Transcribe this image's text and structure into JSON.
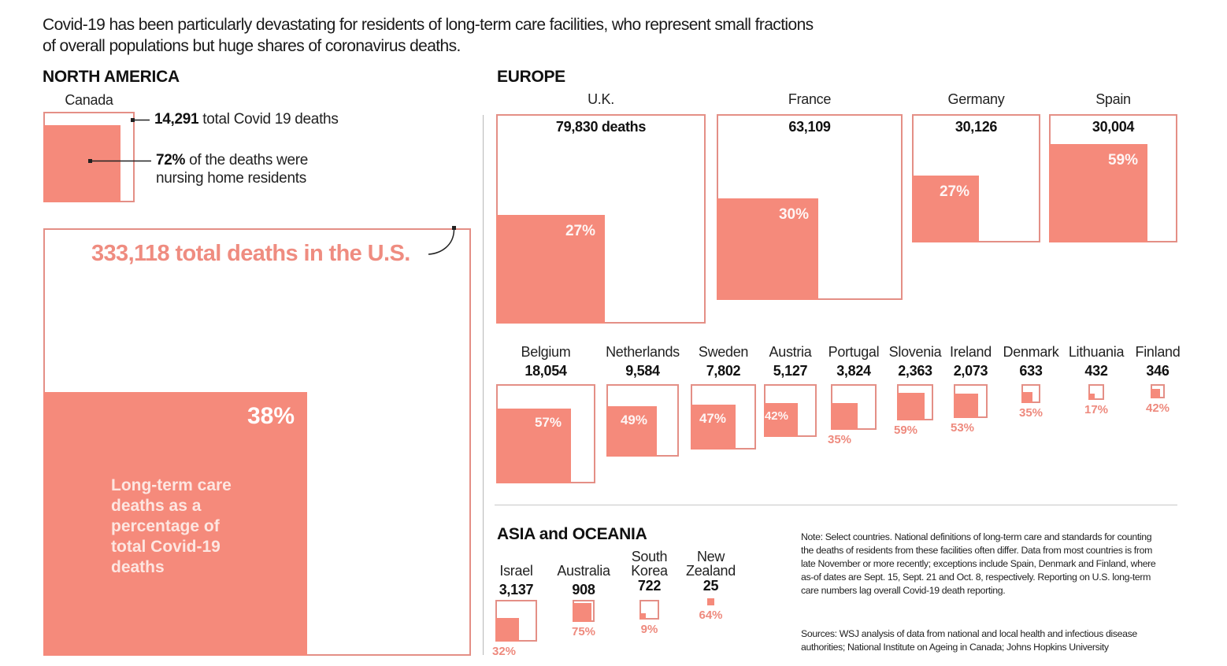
{
  "intro": "Covid-19 has been particularly devastating for residents of long-term care facilities, who represent small fractions of overall populations but huge shares of coronavirus deaths.",
  "colors": {
    "fill": "#f58a7b",
    "border": "#e48f86",
    "accent_text": "#ef8c80"
  },
  "north_america": {
    "heading": "NORTH AMERICA",
    "canada": {
      "name": "Canada",
      "total_value": "14,291",
      "total_text": " total Covid 19 deaths",
      "pct_value": "72%",
      "pct_text_1": " of the deaths were",
      "pct_text_2": "nursing home residents"
    },
    "us": {
      "title": "333,118 total deaths in the U.S.",
      "pct": "38%",
      "description": [
        "Long-term care",
        "deaths as a",
        "percentage of",
        "total Covid-19",
        "deaths"
      ]
    }
  },
  "europe": {
    "heading": "EUROPE"
  },
  "asia": {
    "heading": "ASIA and OCEANIA"
  },
  "note": "Note: Select countries. National definitions of long-term care and standards for counting the deaths of residents from these facilities often differ. Data from most countries is from late November or more recently; exceptions include Spain, Denmark and Finland, where as-of dates are Sept. 15, Sept. 21 and Oct. 8, respectively. Reporting on U.S. long-term care numbers lag overall Covid-19 death reporting.",
  "sources": "Sources: WSJ analysis of data from national and local health and infectious disease authorities; National Institute on Ageing in Canada; Johns Hopkins University",
  "chart_data": {
    "type": "table",
    "title": "Long-term care deaths as a percentage of total Covid-19 deaths",
    "columns": [
      "region",
      "country",
      "total_deaths",
      "ltc_share_pct"
    ],
    "rows": [
      {
        "region": "North America",
        "country": "Canada",
        "total_deaths": 14291,
        "total_label": "14,291",
        "ltc_share_pct": 72
      },
      {
        "region": "North America",
        "country": "U.S.",
        "total_deaths": 333118,
        "total_label": "333,118",
        "ltc_share_pct": 38
      },
      {
        "region": "Europe",
        "country": "U.K.",
        "total_deaths": 79830,
        "total_label": "79,830 deaths",
        "ltc_share_pct": 27
      },
      {
        "region": "Europe",
        "country": "France",
        "total_deaths": 63109,
        "total_label": "63,109",
        "ltc_share_pct": 30
      },
      {
        "region": "Europe",
        "country": "Germany",
        "total_deaths": 30126,
        "total_label": "30,126",
        "ltc_share_pct": 27
      },
      {
        "region": "Europe",
        "country": "Spain",
        "total_deaths": 30004,
        "total_label": "30,004",
        "ltc_share_pct": 59
      },
      {
        "region": "Europe",
        "country": "Belgium",
        "total_deaths": 18054,
        "total_label": "18,054",
        "ltc_share_pct": 57
      },
      {
        "region": "Europe",
        "country": "Netherlands",
        "total_deaths": 9584,
        "total_label": "9,584",
        "ltc_share_pct": 49
      },
      {
        "region": "Europe",
        "country": "Sweden",
        "total_deaths": 7802,
        "total_label": "7,802",
        "ltc_share_pct": 47
      },
      {
        "region": "Europe",
        "country": "Austria",
        "total_deaths": 5127,
        "total_label": "5,127",
        "ltc_share_pct": 42
      },
      {
        "region": "Europe",
        "country": "Portugal",
        "total_deaths": 3824,
        "total_label": "3,824",
        "ltc_share_pct": 35
      },
      {
        "region": "Europe",
        "country": "Slovenia",
        "total_deaths": 2363,
        "total_label": "2,363",
        "ltc_share_pct": 59
      },
      {
        "region": "Europe",
        "country": "Ireland",
        "total_deaths": 2073,
        "total_label": "2,073",
        "ltc_share_pct": 53
      },
      {
        "region": "Europe",
        "country": "Denmark",
        "total_deaths": 633,
        "total_label": "633",
        "ltc_share_pct": 35
      },
      {
        "region": "Europe",
        "country": "Lithuania",
        "total_deaths": 432,
        "total_label": "432",
        "ltc_share_pct": 17
      },
      {
        "region": "Europe",
        "country": "Finland",
        "total_deaths": 346,
        "total_label": "346",
        "ltc_share_pct": 42
      },
      {
        "region": "Asia and Oceania",
        "country": "Israel",
        "total_deaths": 3137,
        "total_label": "3,137",
        "ltc_share_pct": 32
      },
      {
        "region": "Asia and Oceania",
        "country": "Australia",
        "total_deaths": 908,
        "total_label": "908",
        "ltc_share_pct": 75
      },
      {
        "region": "Asia and Oceania",
        "country": "South Korea",
        "name_lines": [
          "South",
          "Korea"
        ],
        "total_deaths": 722,
        "total_label": "722",
        "ltc_share_pct": 9
      },
      {
        "region": "Asia and Oceania",
        "country": "New Zealand",
        "name_lines": [
          "New",
          "Zealand"
        ],
        "total_deaths": 25,
        "total_label": "25",
        "ltc_share_pct": 64
      }
    ]
  }
}
